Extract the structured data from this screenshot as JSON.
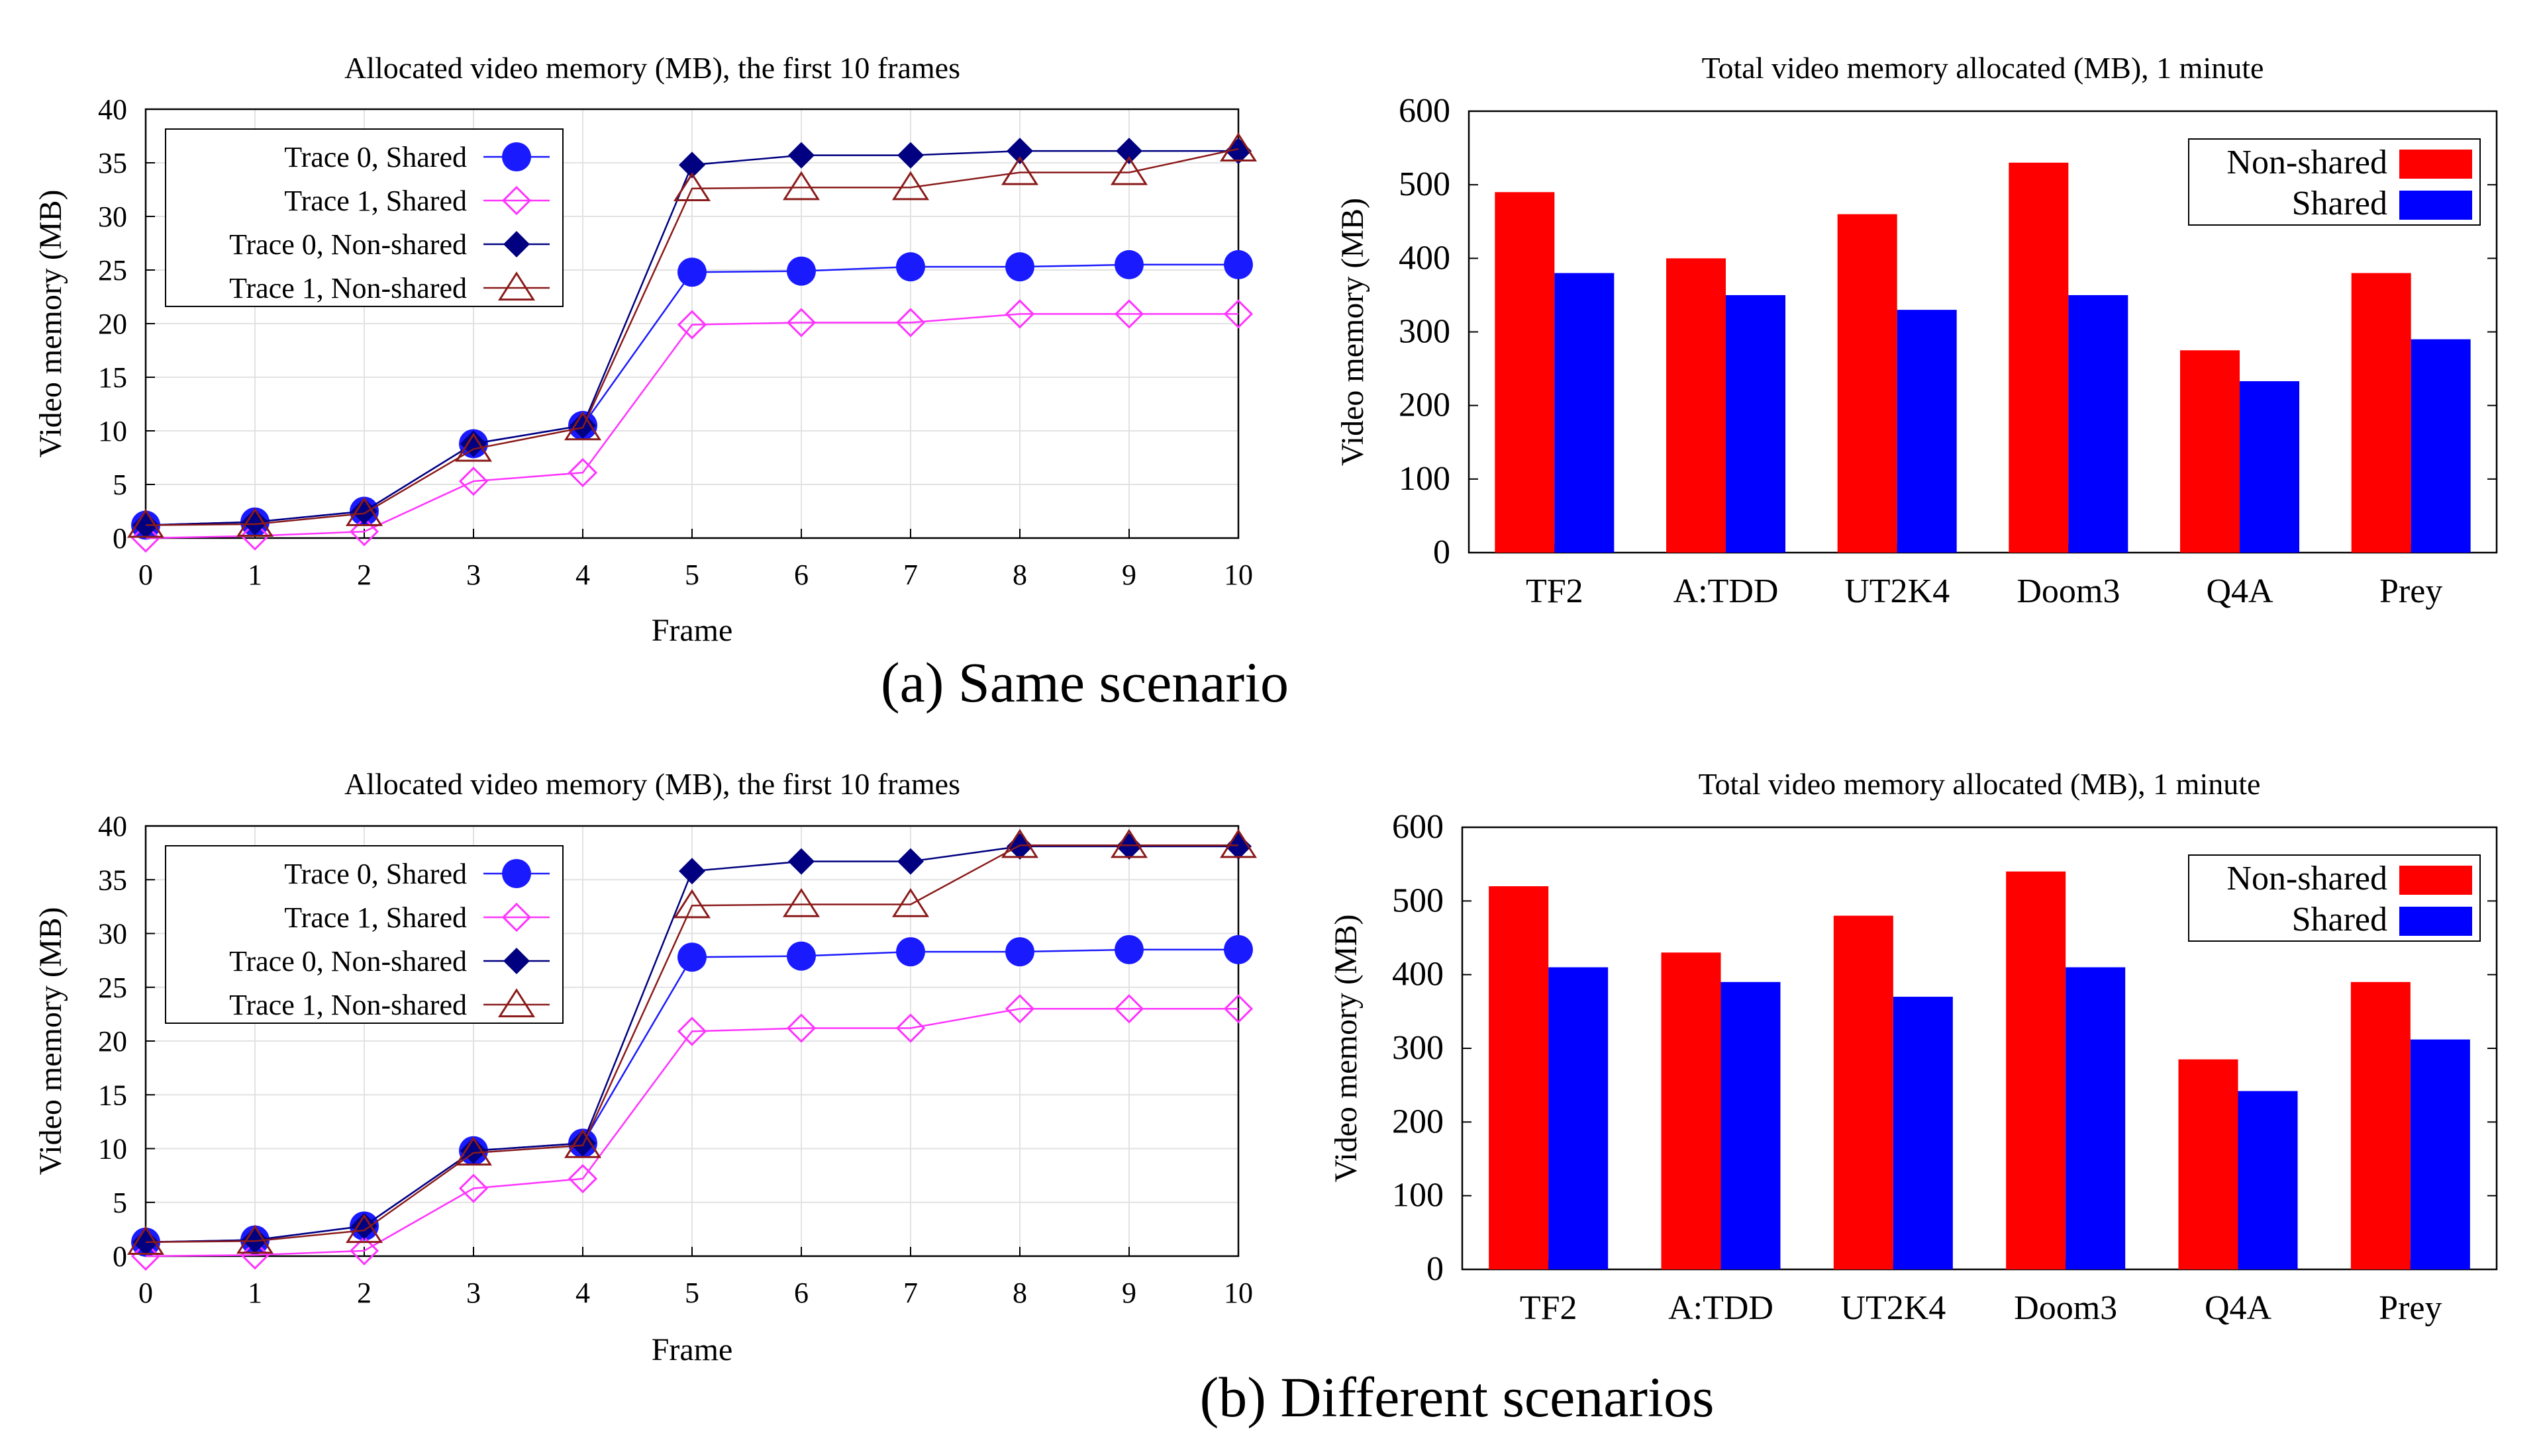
{
  "captions": {
    "a": "(a)  Same scenario",
    "b": "(b) Different scenarios"
  },
  "colors": {
    "trace0_shared": "#1a1aff",
    "trace1_shared": "#ff33ff",
    "trace0_nonshared": "#000080",
    "trace1_nonshared": "#8b1a1a",
    "bar_nonshared": "#ff0000",
    "bar_shared": "#0000ff"
  },
  "chart_data": [
    {
      "id": "a_line",
      "type": "line",
      "title": "Allocated video memory (MB), the first 10 frames",
      "xlabel": "Frame",
      "ylabel": "Video memory (MB)",
      "xlim": [
        0,
        10
      ],
      "ylim": [
        0,
        40
      ],
      "xticks": [
        0,
        1,
        2,
        3,
        4,
        5,
        6,
        7,
        8,
        9,
        10
      ],
      "yticks": [
        0,
        5,
        10,
        15,
        20,
        25,
        30,
        35,
        40
      ],
      "grid": true,
      "legend_position": "top-left",
      "x": [
        0,
        1,
        2,
        3,
        4,
        5,
        6,
        7,
        8,
        9,
        10
      ],
      "series": [
        {
          "name": "Trace 0, Shared",
          "marker": "circle",
          "color": "#1a1aff",
          "values": [
            1.2,
            1.5,
            2.5,
            8.8,
            10.5,
            24.8,
            24.9,
            25.3,
            25.3,
            25.5,
            25.5
          ]
        },
        {
          "name": "Trace 1, Shared",
          "marker": "diamond-open",
          "color": "#ff33ff",
          "values": [
            0,
            0.2,
            0.6,
            5.3,
            6.1,
            19.9,
            20.1,
            20.1,
            20.9,
            20.9,
            20.9
          ]
        },
        {
          "name": "Trace 0, Non-shared",
          "marker": "diamond",
          "color": "#000080",
          "values": [
            1.2,
            1.5,
            2.5,
            8.8,
            10.5,
            34.8,
            35.7,
            35.7,
            36.1,
            36.1,
            36.1
          ]
        },
        {
          "name": "Trace 1, Non-shared",
          "marker": "triangle-open",
          "color": "#8b1a1a",
          "values": [
            1.2,
            1.3,
            2.3,
            8.3,
            10.3,
            32.6,
            32.7,
            32.7,
            34.1,
            34.1,
            36.3
          ]
        }
      ]
    },
    {
      "id": "a_bar",
      "type": "bar",
      "title": "Total video memory allocated (MB), 1 minute",
      "xlabel": "",
      "ylabel": "Video memory (MB)",
      "ylim": [
        0,
        600
      ],
      "yticks": [
        0,
        100,
        200,
        300,
        400,
        500,
        600
      ],
      "grid": false,
      "legend_position": "top-right",
      "categories": [
        "TF2",
        "A:TDD",
        "UT2K4",
        "Doom3",
        "Q4A",
        "Prey"
      ],
      "series": [
        {
          "name": "Non-shared",
          "color": "#ff0000",
          "values": [
            490,
            400,
            460,
            530,
            275,
            380
          ]
        },
        {
          "name": "Shared",
          "color": "#0000ff",
          "values": [
            380,
            350,
            330,
            350,
            233,
            290
          ]
        }
      ]
    },
    {
      "id": "b_line",
      "type": "line",
      "title": "Allocated video memory (MB), the first 10 frames",
      "xlabel": "Frame",
      "ylabel": "Video memory (MB)",
      "xlim": [
        0,
        10
      ],
      "ylim": [
        0,
        40
      ],
      "xticks": [
        0,
        1,
        2,
        3,
        4,
        5,
        6,
        7,
        8,
        9,
        10
      ],
      "yticks": [
        0,
        5,
        10,
        15,
        20,
        25,
        30,
        35,
        40
      ],
      "grid": true,
      "legend_position": "top-left",
      "x": [
        0,
        1,
        2,
        3,
        4,
        5,
        6,
        7,
        8,
        9,
        10
      ],
      "series": [
        {
          "name": "Trace 0, Shared",
          "marker": "circle",
          "color": "#1a1aff",
          "values": [
            1.3,
            1.5,
            2.8,
            9.8,
            10.5,
            27.8,
            27.9,
            28.3,
            28.3,
            28.5,
            28.5
          ]
        },
        {
          "name": "Trace 1, Shared",
          "marker": "diamond-open",
          "color": "#ff33ff",
          "values": [
            0,
            0.1,
            0.5,
            6.3,
            7.2,
            20.9,
            21.2,
            21.2,
            23.0,
            23.0,
            23.0
          ]
        },
        {
          "name": "Trace 0, Non-shared",
          "marker": "diamond",
          "color": "#000080",
          "values": [
            1.3,
            1.5,
            2.8,
            9.8,
            10.5,
            35.8,
            36.7,
            36.7,
            38.1,
            38.1,
            38.1
          ]
        },
        {
          "name": "Trace 1, Non-shared",
          "marker": "triangle-open",
          "color": "#8b1a1a",
          "values": [
            1.3,
            1.4,
            2.4,
            9.6,
            10.3,
            32.6,
            32.7,
            32.7,
            38.2,
            38.2,
            38.2
          ]
        }
      ]
    },
    {
      "id": "b_bar",
      "type": "bar",
      "title": "Total video memory allocated (MB), 1 minute",
      "xlabel": "",
      "ylabel": "Video memory (MB)",
      "ylim": [
        0,
        600
      ],
      "yticks": [
        0,
        100,
        200,
        300,
        400,
        500,
        600
      ],
      "grid": false,
      "legend_position": "top-right",
      "categories": [
        "TF2",
        "A:TDD",
        "UT2K4",
        "Doom3",
        "Q4A",
        "Prey"
      ],
      "series": [
        {
          "name": "Non-shared",
          "color": "#ff0000",
          "values": [
            520,
            430,
            480,
            540,
            285,
            390
          ]
        },
        {
          "name": "Shared",
          "color": "#0000ff",
          "values": [
            410,
            390,
            370,
            410,
            242,
            312
          ]
        }
      ]
    }
  ]
}
